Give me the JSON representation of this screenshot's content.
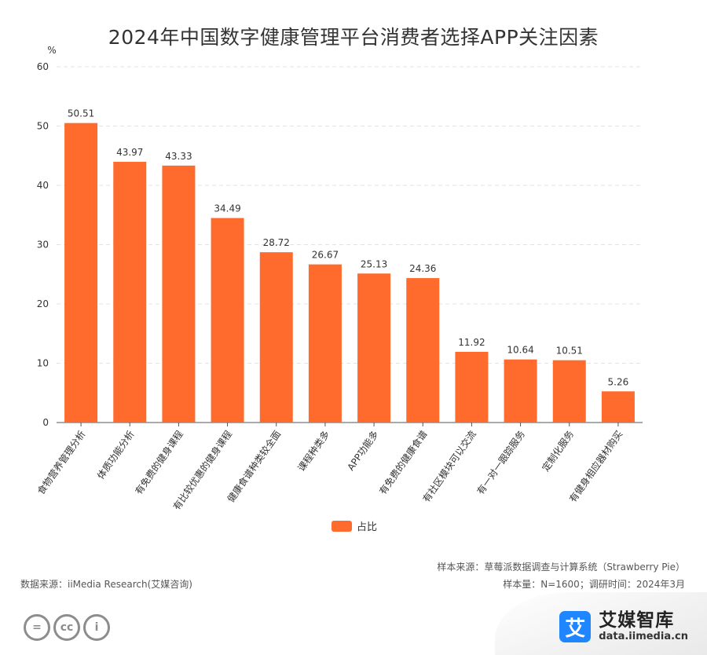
{
  "chart_data": {
    "type": "bar",
    "title": "2024年中国数字健康管理平台消费者选择APP关注因素",
    "y_unit": "%",
    "categories": [
      "食物营养管理分析",
      "体质功能分析",
      "有免费的健身课程",
      "有比较优惠的健身课程",
      "健康食谱种类较全面",
      "课程种类多",
      "APP功能多",
      "有免费的健康食谱",
      "有社区模块可以交流",
      "有一对一跟踪服务",
      "定制化服务",
      "有健身相应器材购买"
    ],
    "series": [
      {
        "name": "占比",
        "values": [
          50.51,
          43.97,
          43.33,
          34.49,
          28.72,
          26.67,
          25.13,
          24.36,
          11.92,
          10.64,
          10.51,
          5.26
        ]
      }
    ],
    "ylim": [
      0,
      60
    ],
    "yticks": [
      0,
      10,
      20,
      30,
      40,
      50,
      60
    ],
    "grid": true,
    "legend_position": "bottom-center",
    "colors": {
      "bar": "#ff6b2c",
      "grid": "#e3e3e3",
      "axis": "#555555"
    }
  },
  "footer": {
    "data_source": "数据来源：iiMedia Research(艾媒咨询)",
    "sample_source": "样本来源：草莓派数据调查与计算系统（Strawberry Pie）",
    "sample_info": "样本量：N=1600；调研时间：2024年3月"
  },
  "logo": {
    "mark": "艾",
    "name": "艾媒智库",
    "url": "data.iimedia.cn"
  },
  "license_badges": [
    "=",
    "cc",
    "i"
  ]
}
